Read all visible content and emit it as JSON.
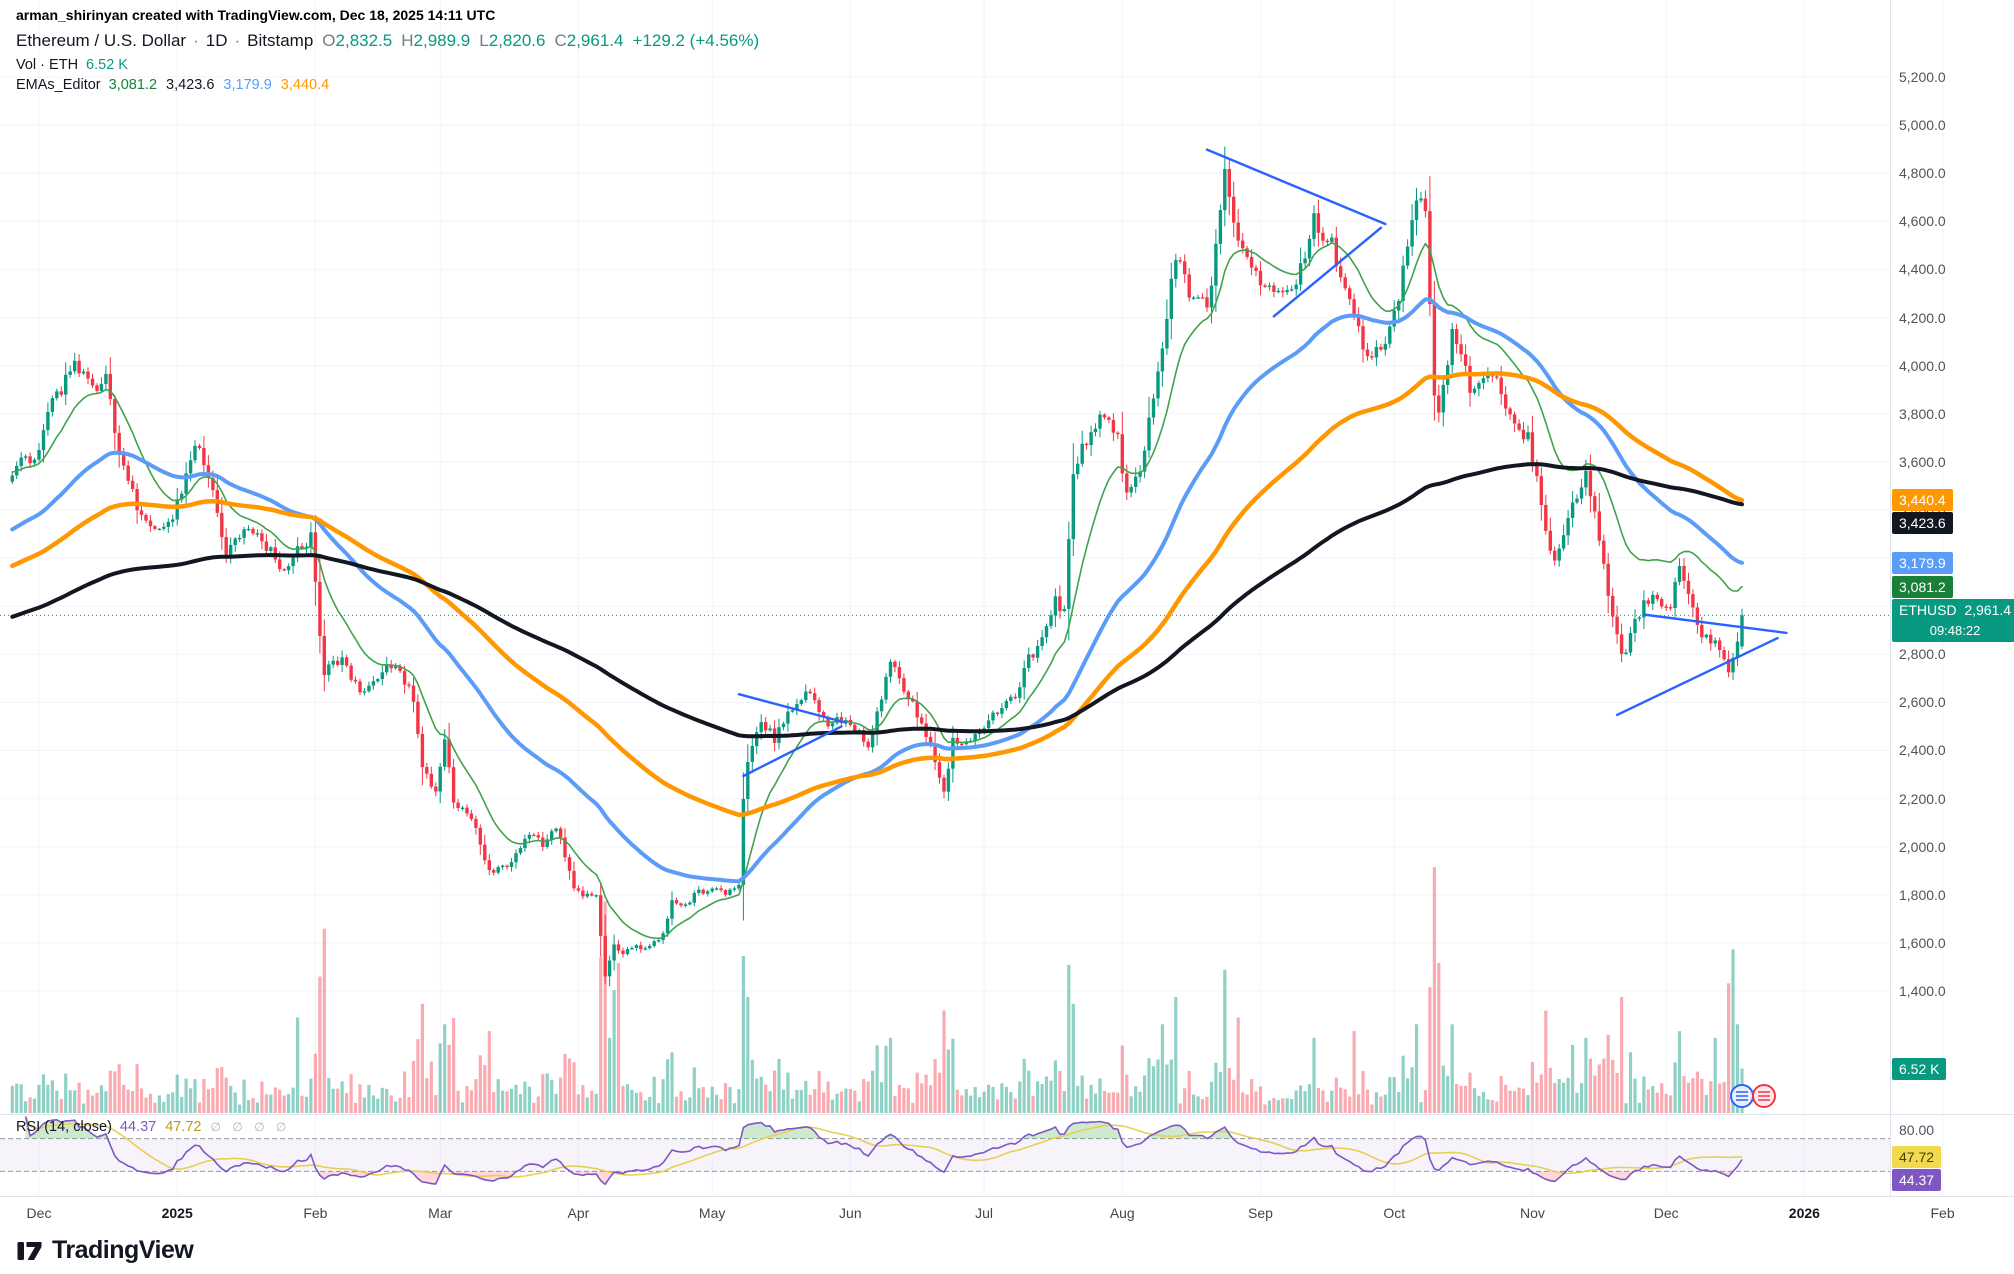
{
  "attribution": "arman_shirinyan created with TradingView.com, Dec 18, 2025 14:11 UTC",
  "legend": {
    "title": "Ethereum / U.S. Dollar",
    "sep": "·",
    "interval": "1D",
    "exchange": "Bitstamp",
    "ohlc": [
      {
        "k": "O",
        "v": "2,832.5"
      },
      {
        "k": "H",
        "v": "2,989.9"
      },
      {
        "k": "L",
        "v": "2,820.6"
      },
      {
        "k": "C",
        "v": "2,961.4"
      }
    ],
    "change": "+129.2 (+4.56%)",
    "vol_label": "Vol · ETH",
    "vol_value": "6.52 K",
    "emas_label": "EMAs_Editor",
    "ema_values": [
      {
        "v": "3,081.2",
        "color": "#188038"
      },
      {
        "v": "3,423.6",
        "color": "#131722"
      },
      {
        "v": "3,179.9",
        "color": "#5b9cf6"
      },
      {
        "v": "3,440.4",
        "color": "#ff9800"
      }
    ],
    "rsi_label": "RSI (14, close)",
    "rsi_values": [
      {
        "v": "44.37",
        "color": "#7e57c2"
      },
      {
        "v": "47.72",
        "color": "#b59b22"
      }
    ],
    "rsi_empty": "∅ ∅ ∅ ∅"
  },
  "price_badges": [
    {
      "name": "ema-orange-price-label",
      "text": "3,440.4",
      "bg": "#ff9800",
      "fg": "#ffffff",
      "price": 3440.4
    },
    {
      "name": "ema-black-price-label",
      "text": "3,423.6",
      "bg": "#131722",
      "fg": "#ffffff",
      "price": 3423.6
    },
    {
      "name": "ema-blue-price-label",
      "text": "3,179.9",
      "bg": "#5b9cf6",
      "fg": "#ffffff",
      "price": 3179.9
    },
    {
      "name": "ema-green-price-label",
      "text": "3,081.2",
      "bg": "#188038",
      "fg": "#ffffff",
      "price": 3081.2
    },
    {
      "name": "current-price-label",
      "symbol": "ETHUSD",
      "text": "2,961.4",
      "countdown": "09:48:22",
      "bg": "#089981",
      "fg": "#ffffff",
      "price": 2961.4
    }
  ],
  "volume_badge": {
    "name": "volume-value-label",
    "text": "6.52 K",
    "bg": "#089981",
    "fg": "#ffffff",
    "value": 6.52
  },
  "rsi_badges": [
    {
      "name": "rsi-ma-value-label",
      "text": "47.72",
      "bg": "#f2d950",
      "fg": "#45400a",
      "value": 47.72
    },
    {
      "name": "rsi-value-label",
      "text": "44.37",
      "bg": "#7e57c2",
      "fg": "#ffffff",
      "value": 44.37
    }
  ],
  "time_axis": [
    {
      "d": 0,
      "label": "Dec"
    },
    {
      "d": 31,
      "label": "2025",
      "year": true
    },
    {
      "d": 62,
      "label": "Feb"
    },
    {
      "d": 90,
      "label": "Mar"
    },
    {
      "d": 121,
      "label": "Apr"
    },
    {
      "d": 151,
      "label": "May"
    },
    {
      "d": 182,
      "label": "Jun"
    },
    {
      "d": 212,
      "label": "Jul"
    },
    {
      "d": 243,
      "label": "Aug"
    },
    {
      "d": 274,
      "label": "Sep"
    },
    {
      "d": 304,
      "label": "Oct"
    },
    {
      "d": 335,
      "label": "Nov"
    },
    {
      "d": 365,
      "label": "Dec"
    },
    {
      "d": 396,
      "label": "2026",
      "year": true
    },
    {
      "d": 427,
      "label": "Feb"
    }
  ],
  "footer": {
    "logo_text": "TradingView"
  },
  "colors": {
    "up": "#089981",
    "down": "#f23645",
    "vol_up": "rgba(8,153,129,0.45)",
    "vol_down": "rgba(242,54,69,0.42)",
    "drawing": "#2962ff",
    "rsi": "#7e57c2",
    "rsi_ma": "#e8cf55",
    "band_fill": "rgba(126,87,194,0.07)",
    "ob_fill": "rgba(76,175,80,0.28)",
    "os_fill": "rgba(255,82,82,0.22)",
    "separator": "#e0e3eb",
    "grid": "#f2f4f9"
  },
  "chart_data": {
    "type": "candlestick",
    "title": "Ethereum / U.S. Dollar",
    "symbol": "ETHUSD",
    "exchange": "Bitstamp",
    "timeframe": "1D",
    "price_axis": {
      "min": 1400,
      "max": 5200,
      "step": 200
    },
    "day_range": [
      -6,
      382
    ],
    "day_zero": "2024-12-01",
    "last_candle": {
      "open": 2832.5,
      "high": 2989.9,
      "low": 2820.6,
      "close": 2961.4,
      "change": 129.2,
      "change_pct": 4.56
    },
    "anchors": [
      [
        -8,
        3480
      ],
      [
        -4,
        3590
      ],
      [
        0,
        3650
      ],
      [
        3,
        3850
      ],
      [
        8,
        3990
      ],
      [
        12,
        3900
      ],
      [
        15,
        3960
      ],
      [
        18,
        3620
      ],
      [
        22,
        3420
      ],
      [
        26,
        3330
      ],
      [
        30,
        3360
      ],
      [
        34,
        3610
      ],
      [
        36,
        3680
      ],
      [
        40,
        3390
      ],
      [
        42,
        3230
      ],
      [
        47,
        3320
      ],
      [
        51,
        3250
      ],
      [
        55,
        3150
      ],
      [
        58,
        3230
      ],
      [
        61,
        3290
      ],
      [
        63,
        2880
      ],
      [
        64,
        2720
      ],
      [
        68,
        2790
      ],
      [
        72,
        2630
      ],
      [
        74,
        2680
      ],
      [
        78,
        2750
      ],
      [
        81,
        2720
      ],
      [
        84,
        2620
      ],
      [
        86,
        2320
      ],
      [
        89,
        2230
      ],
      [
        91,
        2450
      ],
      [
        93,
        2190
      ],
      [
        97,
        2130
      ],
      [
        101,
        1890
      ],
      [
        104,
        1920
      ],
      [
        106,
        1930
      ],
      [
        110,
        2060
      ],
      [
        113,
        2010
      ],
      [
        116,
        2090
      ],
      [
        120,
        1820
      ],
      [
        122,
        1790
      ],
      [
        125,
        1810
      ],
      [
        127,
        1450
      ],
      [
        129,
        1590
      ],
      [
        131,
        1560
      ],
      [
        133,
        1590
      ],
      [
        137,
        1580
      ],
      [
        140,
        1640
      ],
      [
        142,
        1770
      ],
      [
        145,
        1750
      ],
      [
        147,
        1800
      ],
      [
        151,
        1830
      ],
      [
        154,
        1810
      ],
      [
        157,
        1850
      ],
      [
        158,
        2210
      ],
      [
        159,
        2340
      ],
      [
        162,
        2520
      ],
      [
        165,
        2450
      ],
      [
        168,
        2560
      ],
      [
        172,
        2650
      ],
      [
        175,
        2560
      ],
      [
        177,
        2520
      ],
      [
        181,
        2530
      ],
      [
        184,
        2480
      ],
      [
        186,
        2410
      ],
      [
        189,
        2620
      ],
      [
        191,
        2790
      ],
      [
        194,
        2650
      ],
      [
        197,
        2550
      ],
      [
        200,
        2420
      ],
      [
        203,
        2240
      ],
      [
        205,
        2440
      ],
      [
        208,
        2420
      ],
      [
        211,
        2490
      ],
      [
        214,
        2540
      ],
      [
        216,
        2580
      ],
      [
        219,
        2620
      ],
      [
        222,
        2780
      ],
      [
        225,
        2850
      ],
      [
        228,
        3020
      ],
      [
        230,
        2970
      ],
      [
        232,
        3560
      ],
      [
        236,
        3740
      ],
      [
        239,
        3810
      ],
      [
        242,
        3690
      ],
      [
        244,
        3460
      ],
      [
        246,
        3530
      ],
      [
        248,
        3640
      ],
      [
        250,
        3870
      ],
      [
        252,
        4090
      ],
      [
        255,
        4460
      ],
      [
        258,
        4310
      ],
      [
        260,
        4290
      ],
      [
        262,
        4230
      ],
      [
        264,
        4500
      ],
      [
        266,
        4830
      ],
      [
        268,
        4620
      ],
      [
        269,
        4510
      ],
      [
        271,
        4450
      ],
      [
        273,
        4390
      ],
      [
        275,
        4320
      ],
      [
        277,
        4300
      ],
      [
        280,
        4290
      ],
      [
        282,
        4320
      ],
      [
        284,
        4470
      ],
      [
        286,
        4610
      ],
      [
        288,
        4550
      ],
      [
        290,
        4500
      ],
      [
        293,
        4330
      ],
      [
        295,
        4190
      ],
      [
        297,
        4080
      ],
      [
        299,
        4010
      ],
      [
        301,
        4090
      ],
      [
        303,
        4150
      ],
      [
        305,
        4280
      ],
      [
        307,
        4490
      ],
      [
        309,
        4700
      ],
      [
        311,
        4630
      ],
      [
        313,
        3860
      ],
      [
        314,
        3780
      ],
      [
        315,
        3920
      ],
      [
        317,
        4120
      ],
      [
        319,
        4060
      ],
      [
        321,
        3890
      ],
      [
        323,
        3920
      ],
      [
        325,
        3990
      ],
      [
        327,
        3930
      ],
      [
        329,
        3820
      ],
      [
        331,
        3770
      ],
      [
        334,
        3700
      ],
      [
        336,
        3530
      ],
      [
        338,
        3310
      ],
      [
        340,
        3190
      ],
      [
        342,
        3290
      ],
      [
        344,
        3430
      ],
      [
        346,
        3510
      ],
      [
        347,
        3560
      ],
      [
        349,
        3380
      ],
      [
        351,
        3160
      ],
      [
        353,
        2960
      ],
      [
        355,
        2780
      ],
      [
        357,
        2870
      ],
      [
        358,
        2940
      ],
      [
        360,
        3010
      ],
      [
        362,
        3050
      ],
      [
        364,
        2990
      ],
      [
        366,
        3010
      ],
      [
        368,
        3160
      ],
      [
        370,
        3060
      ],
      [
        372,
        2900
      ],
      [
        374,
        2870
      ],
      [
        376,
        2840
      ],
      [
        378,
        2790
      ],
      [
        379,
        2730
      ],
      [
        380,
        2770
      ],
      [
        381,
        2832
      ],
      [
        382,
        2961.4
      ]
    ],
    "emas": [
      {
        "name": "ema-fast",
        "period": 13,
        "seed": 3560,
        "last": 3081.2,
        "color": "#3fa34d",
        "width": 1.6
      },
      {
        "name": "ema-mid",
        "period": 50,
        "seed": 3310,
        "last": 3179.9,
        "color": "#5b9cf6",
        "width": 4
      },
      {
        "name": "ema-slow",
        "period": 100,
        "seed": 3160,
        "last": 3440.4,
        "color": "#ff9800",
        "width": 4.5
      },
      {
        "name": "ema-slowest",
        "period": 200,
        "seed": 2950,
        "last": 3423.6,
        "color": "#131722",
        "width": 4
      }
    ],
    "volume": {
      "unit": "K",
      "base": 1.9,
      "impulse": 170,
      "scale_max": 40,
      "last": 6.52,
      "spikes": {
        "58": 14,
        "63": 20,
        "64": 27,
        "86": 16,
        "91": 13,
        "101": 12,
        "127": 31,
        "129": 18,
        "130": 22,
        "158": 23,
        "159": 17,
        "191": 11,
        "203": 15,
        "232": 16,
        "252": 13,
        "255": 17,
        "266": 21,
        "269": 14,
        "286": 11,
        "295": 12,
        "309": 13,
        "313": 36,
        "314": 22,
        "317": 13,
        "338": 15,
        "344": 10,
        "347": 11,
        "355": 17,
        "368": 12,
        "376": 11,
        "379": 19,
        "380": 24,
        "381": 13,
        "382": 6.52
      }
    },
    "rsi": {
      "period": 14,
      "ma_period": 14,
      "last": 44.37,
      "ma_last": 47.72,
      "levels": [
        70,
        30
      ],
      "axis_label": {
        "text": "80.00",
        "value": 80
      }
    },
    "drawings": [
      {
        "name": "pennant-may-upper",
        "pts": [
          [
            157,
            2634
          ],
          [
            181,
            2516
          ]
        ]
      },
      {
        "name": "pennant-may-lower",
        "pts": [
          [
            158,
            2294
          ],
          [
            180,
            2500
          ]
        ]
      },
      {
        "name": "triangle-sep-upper",
        "pts": [
          [
            262,
            4898
          ],
          [
            302,
            4589
          ]
        ]
      },
      {
        "name": "triangle-sep-lower",
        "pts": [
          [
            277,
            4205
          ],
          [
            301,
            4573
          ]
        ]
      },
      {
        "name": "wedge-dec-upper",
        "pts": [
          [
            360,
            2965
          ],
          [
            392,
            2889
          ]
        ]
      },
      {
        "name": "wedge-dec-lower",
        "pts": [
          [
            354,
            2548
          ],
          [
            390,
            2867
          ]
        ]
      }
    ]
  }
}
